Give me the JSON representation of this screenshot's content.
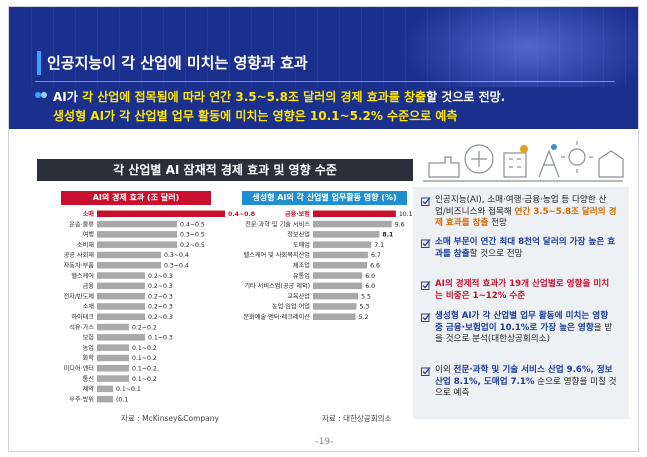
{
  "header": {
    "title": "인공지능이 각 산업에 미치는 영향과 효과"
  },
  "summary": {
    "line1_a": "AI가 ",
    "line1_b": "각 산업에 접목됨에 따라 연간 3.5~5.8조 달러의 경제 효과를 창출",
    "line1_c": "할 것으로 전망.",
    "line2": "생성형 AI가 각 산업별 업무 활동에 미치는 영향은 10.1~5.2% 수준으로 예측"
  },
  "chart": {
    "title": "각 산업별 AI 잠재적 경제 효과 및 영향 수준",
    "left_header": "AI의 경제 효과 (조 달러)",
    "right_header": "생성형 AI의 각 산업별 업무활동 영향 (%)",
    "left_source": "자료 : McKinsey&Company",
    "right_source": "자료 : 대한상공회의소"
  },
  "chart_data": [
    {
      "type": "bar",
      "title": "AI의 경제 효과 (조 달러)",
      "categories": [
        "소매",
        "운송·물류",
        "여행",
        "소비재",
        "공공 사회재",
        "자동차·부품",
        "헬스케어",
        "금융",
        "전자/반도체",
        "소재",
        "하이테크",
        "석유·가스",
        "보험",
        "농업",
        "화학",
        "미디어·엔터",
        "통신",
        "제약",
        "우주·방위"
      ],
      "labels": [
        "0.4~0.8",
        "0.4~0.5",
        "0.3~0.5",
        "0.2~0.5",
        "0.3~0.4",
        "0.3~0.4",
        "0.2~0.3",
        "0.2~0.3",
        "0.2~0.3",
        "0.2~0.3",
        "0.2~0.3",
        "0.2~0.2",
        "0.1~0.3",
        "0.1~0.2",
        "0.1~0.2",
        "0.1~0.2",
        "0.1~0.2",
        "0.1~0.1",
        "(0.1"
      ],
      "values": [
        0.8,
        0.5,
        0.5,
        0.5,
        0.4,
        0.4,
        0.3,
        0.3,
        0.3,
        0.3,
        0.3,
        0.2,
        0.3,
        0.2,
        0.2,
        0.2,
        0.2,
        0.1,
        0.1
      ],
      "highlight_index": 0,
      "colors": {
        "highlight": "#c8102e",
        "normal": "#a9a9a9"
      }
    },
    {
      "type": "bar",
      "title": "생성형 AI의 각 산업별 업무활동 영향 (%)",
      "categories": [
        "금융·보험",
        "전문·과학 및 기술 서비스",
        "정보산업",
        "도매업",
        "헬스케어 및 사회복지산업",
        "제조업",
        "유통업",
        "기타 서비스업(공공 제외)",
        "교육산업",
        "농업·임업·어업",
        "문화예술·엔터·레크레이션"
      ],
      "values": [
        10.1,
        9.6,
        8.1,
        7.1,
        6.7,
        6.6,
        6.0,
        6.0,
        5.5,
        5.3,
        5.2
      ],
      "highlight_index": 0,
      "colors": {
        "highlight": "#c8102e",
        "normal": "#a9a9a9"
      }
    }
  ],
  "bullets": [
    {
      "parts": [
        {
          "t": "인공지능(AI), 소매·여행·금융·농업 등 다양한 산업/비즈니스와 접목해 ",
          "c": ""
        },
        {
          "t": "연간 3.5~5.8조 달러의 경제 효과를 창출",
          "c": "orange"
        },
        {
          "t": " 전망",
          "c": ""
        }
      ]
    },
    {
      "parts": [
        {
          "t": "소매 부문이 연간 최대 8천억 달러의 가장 높은 효과를 창출",
          "c": "blue"
        },
        {
          "t": "할 것으로 전망",
          "c": ""
        }
      ]
    },
    {
      "parts": [
        {
          "t": "AI의 경제적 효과가 19개 산업별로 영향을 미치는 비중은 1~12% 수준",
          "c": "red"
        }
      ]
    },
    {
      "parts": [
        {
          "t": "생성형 AI가 각 산업별 업무 활동에 미치는 영향 중 금융·보험업이 10.1%로 가장 높은 영향",
          "c": "blue"
        },
        {
          "t": "을 받을 것으로 분석(대한상공회의소)",
          "c": ""
        }
      ]
    },
    {
      "parts": [
        {
          "t": "이외 ",
          "c": ""
        },
        {
          "t": "전문·과학 및 기술 서비스 산업 9.6%, 정보산업 8.1%, 도매업 7.1%",
          "c": "blue"
        },
        {
          "t": " 순으로 영향을 미칠 것으로 예측",
          "c": ""
        }
      ]
    }
  ],
  "footer": {
    "page": "-19-"
  }
}
